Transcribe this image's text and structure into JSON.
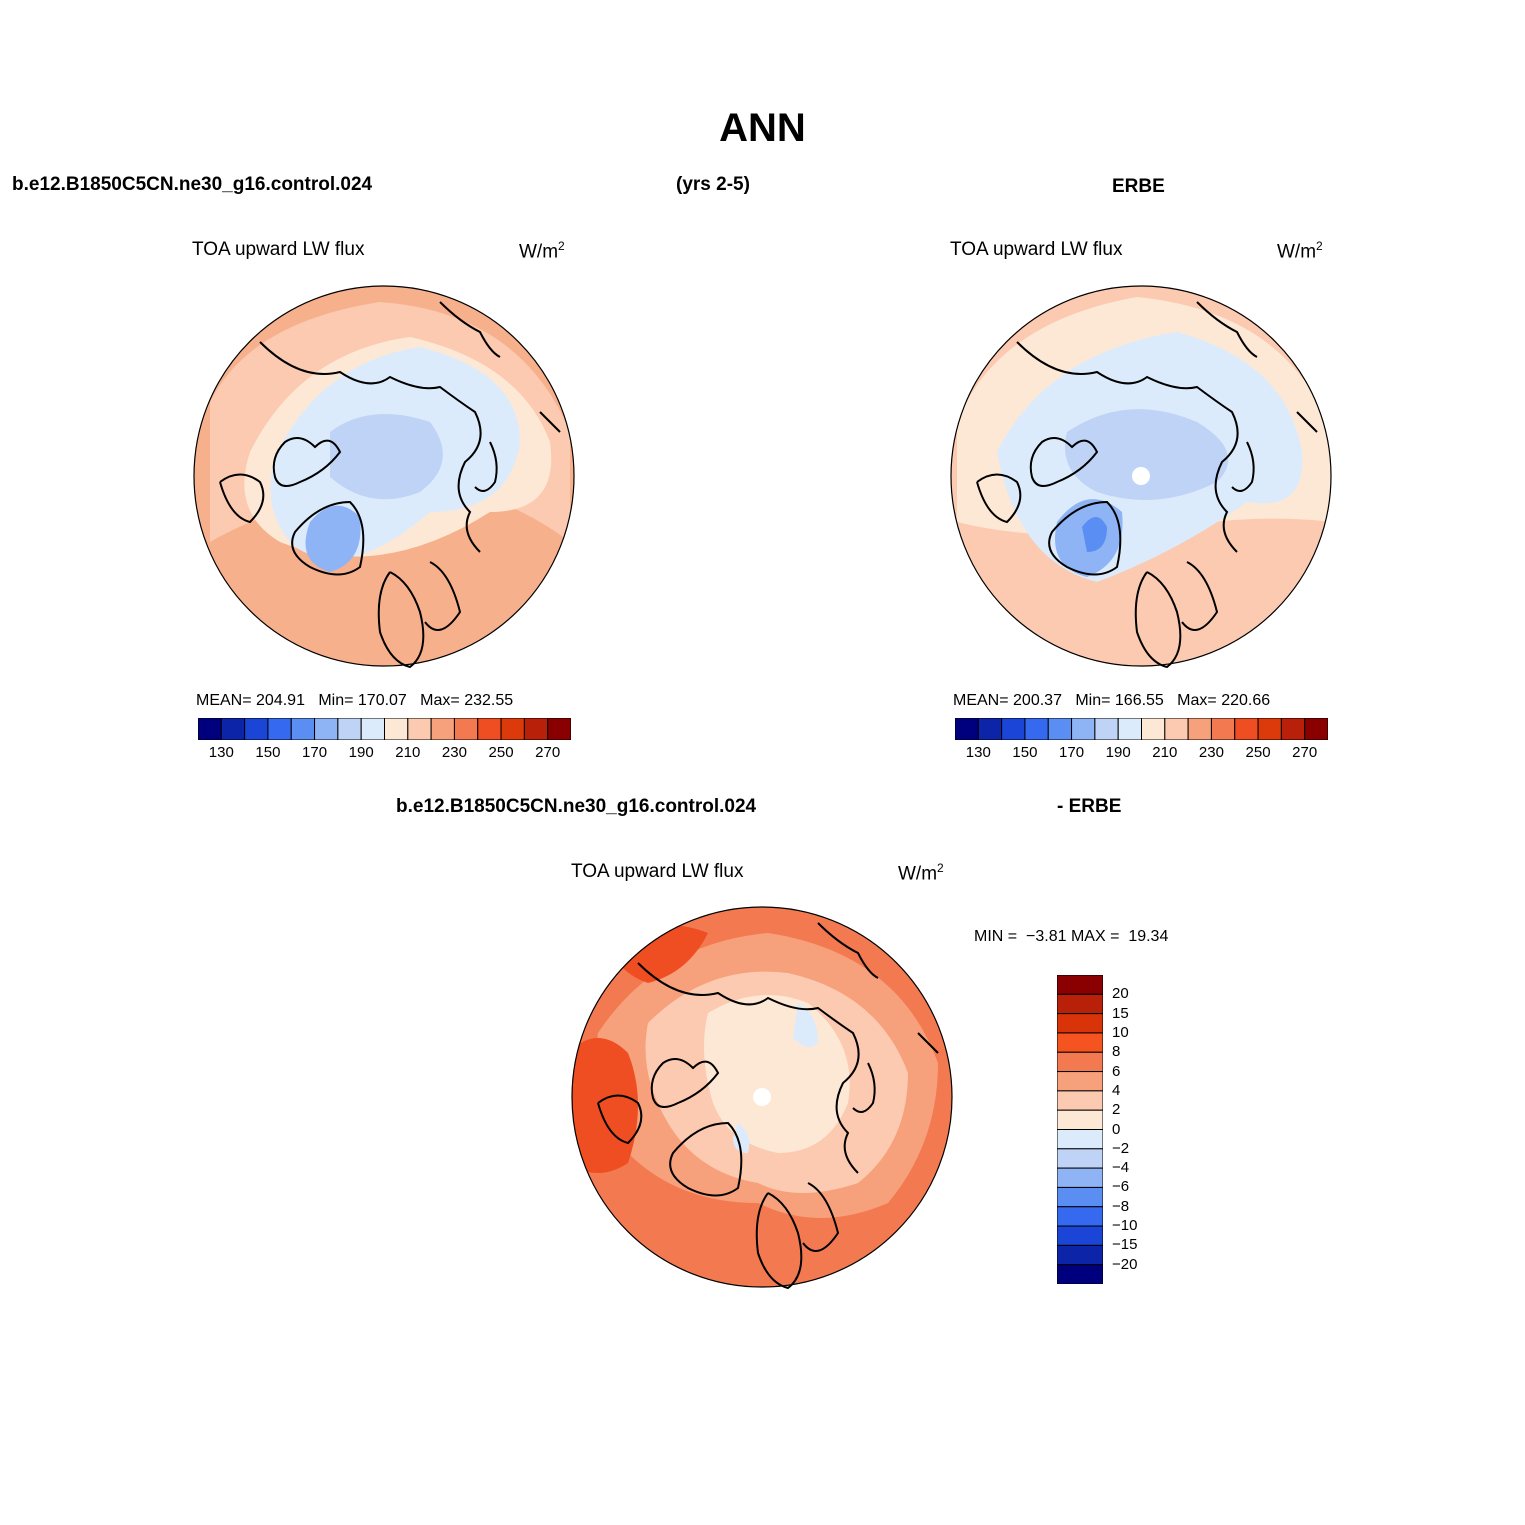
{
  "title": "ANN",
  "headers": {
    "model_case": "b.e12.B1850C5CN.ne30_g16.control.024",
    "years": "(yrs 2-5)",
    "obs": "ERBE",
    "diff_case": "b.e12.B1850C5CN.ne30_g16.control.024",
    "diff_obs": "- ERBE"
  },
  "panels": [
    {
      "id": "model",
      "variable": "TOA upward LW flux",
      "units_base": "W/m",
      "units_exp": "2",
      "stats": {
        "mean_label": "MEAN=",
        "mean": "204.91",
        "min_label": "Min=",
        "min": "170.07",
        "max_label": "Max=",
        "max": "232.55"
      }
    },
    {
      "id": "obs",
      "variable": "TOA upward LW flux",
      "units_base": "W/m",
      "units_exp": "2",
      "stats": {
        "mean_label": "MEAN=",
        "mean": "200.37",
        "min_label": "Min=",
        "min": "166.55",
        "max_label": "Max=",
        "max": "220.66"
      }
    },
    {
      "id": "diff",
      "variable": "TOA upward LW flux",
      "units_base": "W/m",
      "units_exp": "2",
      "stats": {
        "min_label": "MIN =",
        "min": "−3.81",
        "max_label": "MAX =",
        "max": "19.34"
      }
    }
  ],
  "colorbar_abs": {
    "colors": [
      "#00007f",
      "#0b24a8",
      "#1a45d6",
      "#3469f0",
      "#5b8ef2",
      "#8fb4f5",
      "#bfd3f7",
      "#dcebfb",
      "#fde8d6",
      "#fbcab0",
      "#f7a07c",
      "#f37a50",
      "#ee4e22",
      "#dd3a0c",
      "#b8200a",
      "#8a0000"
    ],
    "ticks": [
      "130",
      "150",
      "170",
      "190",
      "210",
      "230",
      "250",
      "270"
    ]
  },
  "colorbar_diff": {
    "colors": [
      "#8a0000",
      "#b8200a",
      "#d93309",
      "#f5531f",
      "#f37a50",
      "#f7a07c",
      "#fbcab0",
      "#fde8d6",
      "#dcebfb",
      "#bfd3f7",
      "#8fb4f5",
      "#5b8ef2",
      "#3469f0",
      "#1a45d6",
      "#0b24a8",
      "#00007f"
    ],
    "labels": [
      "20",
      "15",
      "10",
      "8",
      "6",
      "4",
      "2",
      "0",
      "−2",
      "−4",
      "−6",
      "−8",
      "−10",
      "−15",
      "−20"
    ]
  },
  "colors": {
    "coast": "#000000",
    "field_warm": "#f7b08c",
    "field_cool": "#d5e5fa"
  }
}
